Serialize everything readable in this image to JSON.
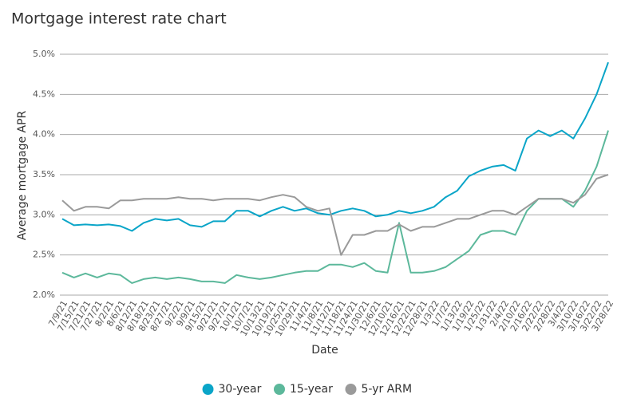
{
  "chart_data": {
    "type": "line",
    "title": "Mortgage interest rate chart",
    "x_label": "Date",
    "y_label": "Average mortgage APR",
    "categories": [
      "7/9/21",
      "7/15/21",
      "7/21/21",
      "7/27/21",
      "8/2/21",
      "8/6/21",
      "8/12/21",
      "8/18/21",
      "8/23/21",
      "8/27/21",
      "9/2/21",
      "9/9/21",
      "9/15/21",
      "9/21/21",
      "9/27/21",
      "10/1/21",
      "10/7/21",
      "10/13/21",
      "10/19/21",
      "10/25/21",
      "10/29/21",
      "11/4/21",
      "11/8/21",
      "11/12/21",
      "11/18/21",
      "11/24/21",
      "11/30/21",
      "12/6/21",
      "12/10/21",
      "12/16/21",
      "12/22/21",
      "12/28/21",
      "1/3/22",
      "1/7/22",
      "1/13/22",
      "1/19/22",
      "1/25/22",
      "1/31/22",
      "2/4/22",
      "2/10/22",
      "2/16/22",
      "2/22/22",
      "2/28/22",
      "3/4/22",
      "3/10/22",
      "3/16/22",
      "3/22/22",
      "3/28/22"
    ],
    "series": [
      {
        "name": "30-year",
        "color": "#0aa5c8",
        "values": [
          2.95,
          2.87,
          2.88,
          2.87,
          2.88,
          2.86,
          2.8,
          2.9,
          2.95,
          2.93,
          2.95,
          2.87,
          2.85,
          2.92,
          2.92,
          3.05,
          3.05,
          2.98,
          3.05,
          3.1,
          3.05,
          3.08,
          3.02,
          3.0,
          3.05,
          3.08,
          3.05,
          2.98,
          3.0,
          3.05,
          3.02,
          3.05,
          3.1,
          3.22,
          3.3,
          3.48,
          3.55,
          3.6,
          3.62,
          3.55,
          3.95,
          4.05,
          3.98,
          4.05,
          3.95,
          4.2,
          4.5,
          4.9
        ]
      },
      {
        "name": "15-year",
        "color": "#5cb89b",
        "values": [
          2.28,
          2.22,
          2.27,
          2.22,
          2.27,
          2.25,
          2.15,
          2.2,
          2.22,
          2.2,
          2.22,
          2.2,
          2.17,
          2.17,
          2.15,
          2.25,
          2.22,
          2.2,
          2.22,
          2.25,
          2.28,
          2.3,
          2.3,
          2.38,
          2.38,
          2.35,
          2.4,
          2.3,
          2.28,
          2.9,
          2.28,
          2.28,
          2.3,
          2.35,
          2.45,
          2.55,
          2.75,
          2.8,
          2.8,
          2.75,
          3.05,
          3.2,
          3.2,
          3.2,
          3.1,
          3.3,
          3.6,
          4.05
        ]
      },
      {
        "name": "5-yr ARM",
        "color": "#9a9a9a",
        "values": [
          3.18,
          3.05,
          3.1,
          3.1,
          3.08,
          3.18,
          3.18,
          3.2,
          3.2,
          3.2,
          3.22,
          3.2,
          3.2,
          3.18,
          3.2,
          3.2,
          3.2,
          3.18,
          3.22,
          3.25,
          3.22,
          3.1,
          3.05,
          3.08,
          2.5,
          2.75,
          2.75,
          2.8,
          2.8,
          2.88,
          2.8,
          2.85,
          2.85,
          2.9,
          2.95,
          2.95,
          3.0,
          3.05,
          3.05,
          3.0,
          3.1,
          3.2,
          3.2,
          3.2,
          3.15,
          3.25,
          3.45,
          3.5
        ]
      }
    ],
    "ylim": [
      2.0,
      5.0
    ],
    "yticks": [
      {
        "value": 2.0,
        "label": "2.0%"
      },
      {
        "value": 2.5,
        "label": "2.5%"
      },
      {
        "value": 3.0,
        "label": "3.0%"
      },
      {
        "value": 3.5,
        "label": "3.5%"
      },
      {
        "value": 4.0,
        "label": "4.0%"
      },
      {
        "value": 4.5,
        "label": "4.5%"
      },
      {
        "value": 5.0,
        "label": "5.0%"
      }
    ],
    "grid": true
  }
}
